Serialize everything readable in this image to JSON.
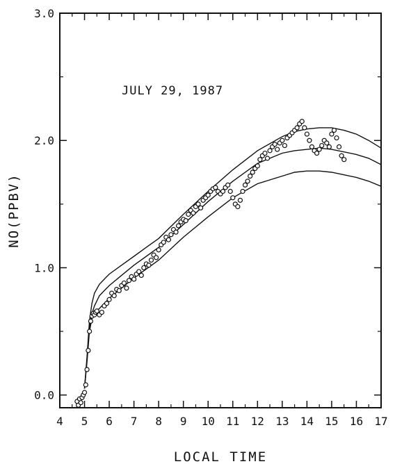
{
  "chart_data": {
    "type": "scatter",
    "title": "",
    "annotation": "JULY 29, 1987",
    "xlabel": "LOCAL TIME",
    "ylabel": "NO(PPBV)",
    "xlim": [
      4,
      17
    ],
    "ylim": [
      -0.1,
      3.0
    ],
    "xticks": [
      4,
      5,
      6,
      7,
      8,
      9,
      10,
      11,
      12,
      13,
      14,
      15,
      16,
      17
    ],
    "xtick_labels": [
      "4",
      "5",
      "6",
      "7",
      "8",
      "9",
      "10",
      "11",
      "12",
      "13",
      "14",
      "15",
      "16",
      "17"
    ],
    "yticks": [
      0.0,
      1.0,
      2.0,
      3.0
    ],
    "ytick_labels": [
      "0.0",
      "1.0",
      "2.0",
      "3.0"
    ],
    "grid": false,
    "colors": {
      "ink": "#111111",
      "background": "#ffffff"
    },
    "series": [
      {
        "kind": "points",
        "x": [
          4.7,
          4.75,
          4.8,
          4.85,
          4.9,
          4.95,
          5.0,
          5.05,
          5.1,
          5.15,
          5.2,
          5.25,
          5.3,
          5.35,
          5.4,
          5.45,
          5.5,
          5.6,
          5.7,
          5.8,
          5.9,
          6.0,
          6.1,
          6.2,
          6.3,
          6.4,
          6.5,
          6.6,
          6.7,
          6.8,
          6.9,
          7.0,
          7.1,
          7.2,
          7.3,
          7.4,
          7.5,
          7.6,
          7.7,
          7.8,
          7.9,
          8.0,
          8.1,
          8.2,
          8.3,
          8.4,
          8.5,
          8.6,
          8.7,
          8.8,
          8.9,
          9.0,
          9.1,
          9.2,
          9.3,
          9.4,
          9.5,
          9.6,
          9.7,
          9.8,
          9.9,
          10.0,
          10.1,
          10.2,
          10.3,
          10.4,
          10.5,
          10.6,
          10.7,
          10.8,
          10.9,
          11.0,
          11.1,
          11.2,
          11.3,
          11.4,
          11.5,
          11.6,
          11.7,
          11.8,
          11.9,
          12.0,
          12.1,
          12.2,
          12.3,
          12.4,
          12.5,
          12.6,
          12.7,
          12.8,
          12.9,
          13.0,
          13.1,
          13.2,
          13.3,
          13.4,
          13.5,
          13.6,
          13.7,
          13.8,
          13.9,
          14.0,
          14.1,
          14.2,
          14.3,
          14.4,
          14.5,
          14.6,
          14.7,
          14.8,
          14.9,
          15.0,
          15.1,
          15.2,
          15.3,
          15.4,
          15.5
        ],
        "y": [
          -0.05,
          -0.08,
          -0.03,
          -0.06,
          -0.02,
          0.0,
          0.02,
          0.08,
          0.2,
          0.35,
          0.5,
          0.58,
          0.62,
          0.64,
          0.63,
          0.65,
          0.66,
          0.63,
          0.65,
          0.7,
          0.72,
          0.75,
          0.8,
          0.78,
          0.83,
          0.82,
          0.86,
          0.88,
          0.84,
          0.9,
          0.93,
          0.91,
          0.95,
          0.97,
          0.94,
          1.0,
          1.03,
          1.02,
          1.06,
          1.1,
          1.08,
          1.14,
          1.18,
          1.2,
          1.24,
          1.22,
          1.26,
          1.3,
          1.28,
          1.33,
          1.36,
          1.38,
          1.37,
          1.42,
          1.45,
          1.43,
          1.48,
          1.5,
          1.47,
          1.53,
          1.55,
          1.57,
          1.6,
          1.62,
          1.63,
          1.6,
          1.58,
          1.6,
          1.63,
          1.65,
          1.6,
          1.55,
          1.5,
          1.48,
          1.53,
          1.6,
          1.65,
          1.68,
          1.72,
          1.75,
          1.78,
          1.8,
          1.85,
          1.88,
          1.9,
          1.86,
          1.92,
          1.95,
          1.97,
          1.93,
          1.98,
          2.0,
          1.96,
          2.02,
          2.04,
          2.06,
          2.08,
          2.1,
          2.13,
          2.15,
          2.1,
          2.05,
          2.0,
          1.95,
          1.92,
          1.9,
          1.93,
          1.96,
          2.0,
          1.98,
          1.95,
          2.05,
          2.08,
          2.02,
          1.95,
          1.88,
          1.85
        ]
      },
      {
        "kind": "line",
        "x": [
          5.0,
          5.1,
          5.2,
          5.3,
          5.4,
          5.6,
          5.8,
          6.0,
          6.5,
          7.0,
          7.5,
          8.0,
          9.0,
          10.0,
          11.0,
          12.0,
          13.0,
          13.5,
          14.0,
          14.5,
          15.0,
          15.5,
          16.0,
          16.5,
          17.0
        ],
        "y": [
          0.05,
          0.3,
          0.58,
          0.72,
          0.8,
          0.87,
          0.91,
          0.95,
          1.02,
          1.09,
          1.16,
          1.23,
          1.42,
          1.6,
          1.77,
          1.92,
          2.03,
          2.07,
          2.09,
          2.1,
          2.1,
          2.08,
          2.05,
          2.0,
          1.94
        ]
      },
      {
        "kind": "line",
        "x": [
          5.0,
          5.1,
          5.2,
          5.3,
          5.4,
          5.6,
          5.8,
          6.0,
          6.5,
          7.0,
          7.5,
          8.0,
          9.0,
          10.0,
          11.0,
          12.0,
          13.0,
          13.5,
          14.0,
          14.5,
          15.0,
          15.5,
          16.0,
          16.5,
          17.0
        ],
        "y": [
          0.05,
          0.28,
          0.53,
          0.64,
          0.7,
          0.78,
          0.82,
          0.86,
          0.94,
          1.02,
          1.09,
          1.16,
          1.34,
          1.52,
          1.68,
          1.82,
          1.9,
          1.92,
          1.93,
          1.94,
          1.93,
          1.91,
          1.89,
          1.86,
          1.81
        ]
      },
      {
        "kind": "line",
        "x": [
          5.0,
          5.1,
          5.2,
          5.3,
          5.4,
          5.6,
          5.8,
          6.0,
          6.5,
          7.0,
          7.5,
          8.0,
          9.0,
          10.0,
          11.0,
          12.0,
          13.0,
          13.5,
          14.0,
          14.5,
          15.0,
          15.5,
          16.0,
          16.5,
          17.0
        ],
        "y": [
          0.05,
          0.26,
          0.5,
          0.6,
          0.64,
          0.68,
          0.72,
          0.76,
          0.84,
          0.92,
          0.99,
          1.06,
          1.24,
          1.4,
          1.55,
          1.66,
          1.72,
          1.75,
          1.76,
          1.76,
          1.75,
          1.73,
          1.71,
          1.68,
          1.64
        ]
      }
    ]
  }
}
